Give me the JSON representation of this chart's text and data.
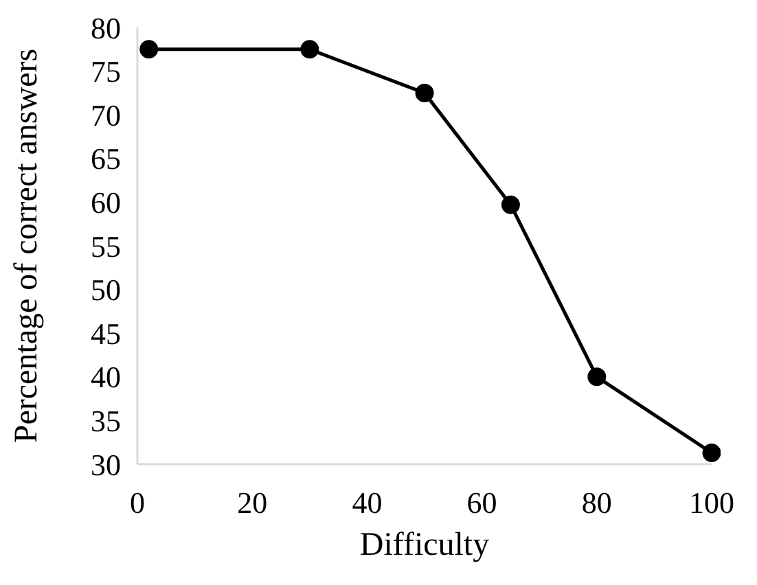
{
  "chart_data": {
    "type": "line",
    "xlabel": "Difficulty",
    "ylabel": "Percentage of correct answers",
    "x": [
      2,
      30,
      50,
      65,
      80,
      100
    ],
    "series": [
      {
        "color": "#000000",
        "values": [
          77.5,
          77.5,
          72.5,
          59.7,
          40,
          31.3
        ]
      }
    ],
    "xlim": [
      0,
      100
    ],
    "xticks": [
      0,
      20,
      40,
      60,
      80,
      100
    ],
    "ylim": [
      30,
      80
    ],
    "yticks": [
      30,
      35,
      40,
      45,
      50,
      55,
      60,
      65,
      70,
      75,
      80
    ],
    "grid": false,
    "legend": false,
    "marker": "circle",
    "line_style": "solid"
  }
}
